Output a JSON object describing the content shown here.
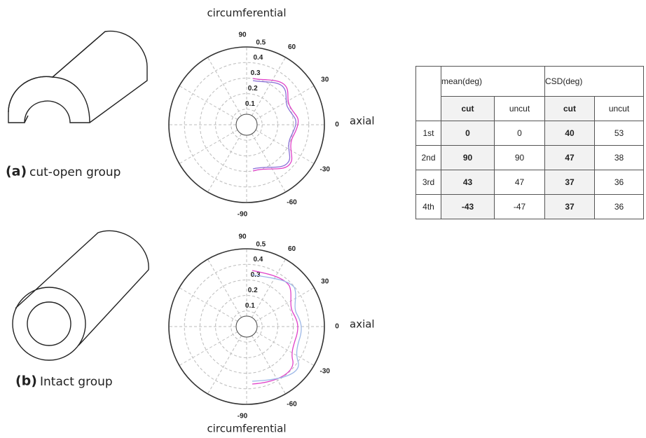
{
  "panels": [
    {
      "label": "(a)",
      "caption": "cut-open group"
    },
    {
      "label": "(b)",
      "caption": "Intact group"
    }
  ],
  "polar": {
    "top_label": "circumferential",
    "bottom_label": "circumferential",
    "side_label": "axial",
    "angle_ticks": [
      90,
      60,
      30,
      0,
      -30,
      -60,
      -90
    ],
    "rlim": [
      0,
      0.5
    ],
    "radial_ticks": [
      0.1,
      0.2,
      0.3,
      0.4,
      0.5
    ]
  },
  "table": {
    "groups": [
      "mean(deg)",
      "CSD(deg)"
    ],
    "subheaders": [
      "cut",
      "uncut",
      "cut",
      "uncut"
    ],
    "rows": [
      [
        "1st",
        0,
        0,
        40,
        53
      ],
      [
        "2nd",
        90,
        90,
        47,
        38
      ],
      [
        "3rd",
        43,
        47,
        37,
        36
      ],
      [
        "4th",
        -43,
        -47,
        37,
        36
      ]
    ]
  }
}
